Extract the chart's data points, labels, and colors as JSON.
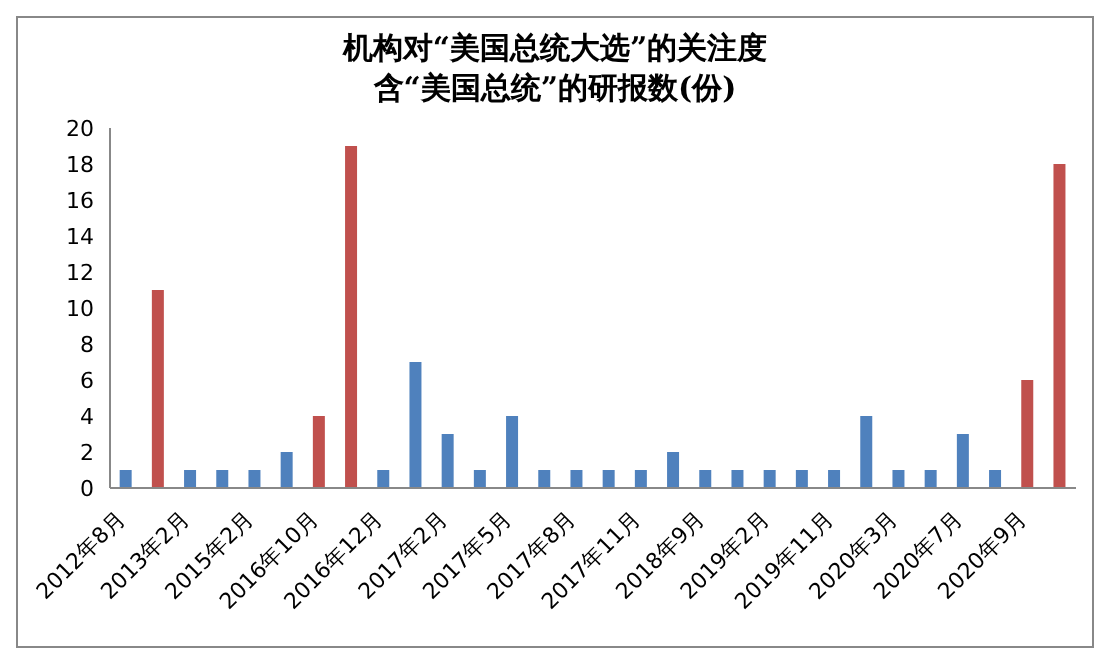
{
  "chart_data": {
    "type": "bar",
    "title": "机构对“美国总统大选”的关注度",
    "subtitle": "含“美国总统”的研报数(份)",
    "categories": [
      "2012年8月",
      null,
      "2013年2月",
      null,
      "2015年2月",
      null,
      "2016年10月",
      null,
      "2016年12月",
      null,
      "2017年2月",
      null,
      "2017年5月",
      null,
      "2017年8月",
      null,
      "2017年11月",
      null,
      "2018年9月",
      null,
      "2019年2月",
      null,
      "2019年11月",
      null,
      "2020年3月",
      null,
      "2020年7月",
      null,
      "2020年9月",
      null
    ],
    "values": [
      1,
      11,
      1,
      1,
      1,
      2,
      4,
      19,
      1,
      7,
      3,
      1,
      4,
      1,
      1,
      1,
      1,
      2,
      1,
      1,
      1,
      1,
      1,
      4,
      1,
      1,
      3,
      1,
      6,
      18
    ],
    "colors": [
      "#4f81bd",
      "#c0504d",
      "#4f81bd",
      "#4f81bd",
      "#4f81bd",
      "#4f81bd",
      "#c0504d",
      "#c0504d",
      "#4f81bd",
      "#4f81bd",
      "#4f81bd",
      "#4f81bd",
      "#4f81bd",
      "#4f81bd",
      "#4f81bd",
      "#4f81bd",
      "#4f81bd",
      "#4f81bd",
      "#4f81bd",
      "#4f81bd",
      "#4f81bd",
      "#4f81bd",
      "#4f81bd",
      "#4f81bd",
      "#4f81bd",
      "#4f81bd",
      "#4f81bd",
      "#4f81bd",
      "#c0504d",
      "#c0504d"
    ],
    "ylim": [
      0,
      20
    ],
    "yticks": [
      0,
      2,
      4,
      6,
      8,
      10,
      12,
      14,
      16,
      18,
      20
    ],
    "grid": false,
    "legend": false
  }
}
